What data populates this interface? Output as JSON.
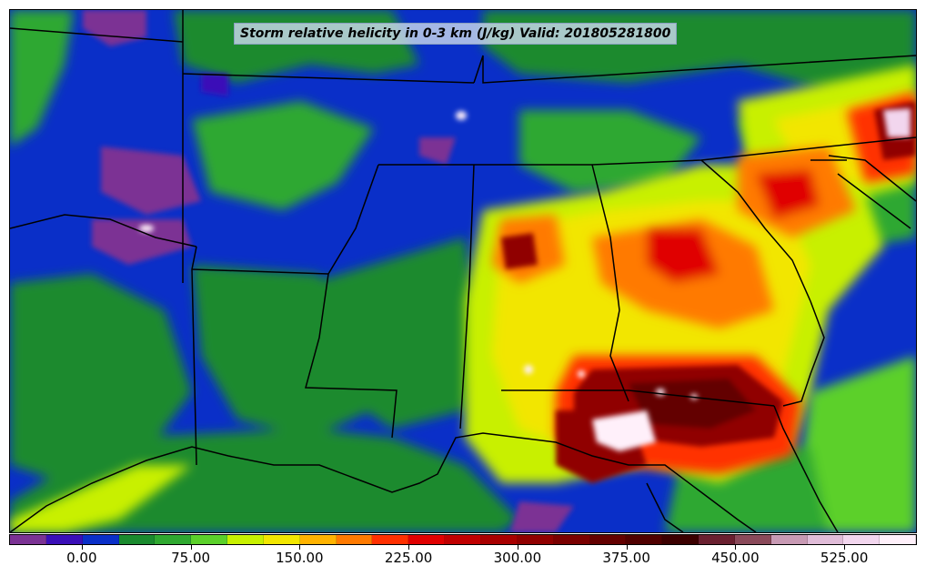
{
  "map": {
    "title": "Storm relative helicity in 0-3 km (J/kg) Valid: 201805281800",
    "field": "storm-relative-helicity",
    "region": "south-central and southeastern United States",
    "features": [
      "state-boundaries",
      "coastlines",
      "filled-contours"
    ]
  },
  "colorbar": {
    "colors": [
      "#7b3294",
      "#3a0fb8",
      "#0a2fc8",
      "#1a8a2e",
      "#2fa830",
      "#5bd02a",
      "#c8f000",
      "#f2e600",
      "#ffb300",
      "#ff7a00",
      "#ff3000",
      "#e00000",
      "#c00000",
      "#a80000",
      "#900000",
      "#7a0000",
      "#640000",
      "#500000",
      "#3c0000",
      "#6a2030",
      "#8a4a5a",
      "#c89ab4",
      "#e0bcd8",
      "#f2d6ee",
      "#fff0fa"
    ],
    "tick_labels": [
      "0.00",
      "75.00",
      "150.00",
      "225.00",
      "300.00",
      "375.00",
      "450.00",
      "525.00"
    ],
    "tick_values": [
      0,
      75,
      150,
      225,
      300,
      375,
      450,
      525
    ],
    "range": [
      -50,
      575
    ],
    "interval": 25
  }
}
